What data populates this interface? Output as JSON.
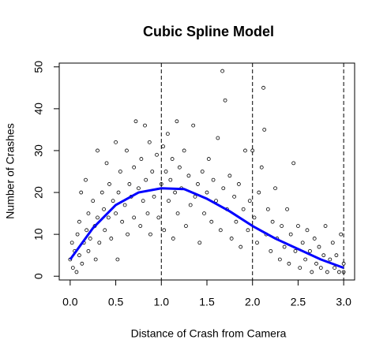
{
  "chart_data": {
    "type": "scatter",
    "title": "Cubic Spline Model",
    "x_label": "Distance of Crash from Camera",
    "y_label": "Number of Crashes",
    "xlim": [
      -0.12,
      3.12
    ],
    "ylim": [
      -0.9,
      50.9
    ],
    "xticks": [
      {
        "value": 0,
        "label": "0.0"
      },
      0.5,
      {
        "value": 1,
        "label": "1.0"
      },
      1.5,
      {
        "value": 2,
        "label": "2.0"
      },
      2.5,
      {
        "value": 3,
        "label": "3.0"
      }
    ],
    "yticks": [
      0,
      10,
      20,
      30,
      40,
      50
    ],
    "color": "#000000",
    "x": [
      0,
      0.02,
      0.03,
      0.05,
      0.07,
      0.08,
      0.1,
      0.1,
      0.12,
      0.13,
      0.15,
      0.17,
      0.18,
      0.2,
      0.2,
      0.22,
      0.25,
      0.27,
      0.28,
      0.3,
      0.3,
      0.32,
      0.35,
      0.37,
      0.38,
      0.4,
      0.42,
      0.43,
      0.45,
      0.47,
      0.5,
      0.5,
      0.52,
      0.53,
      0.55,
      0.57,
      0.6,
      0.62,
      0.63,
      0.65,
      0.67,
      0.7,
      0.7,
      0.72,
      0.75,
      0.77,
      0.78,
      0.8,
      0.82,
      0.83,
      0.85,
      0.87,
      0.88,
      0.9,
      0.92,
      0.95,
      0.97,
      1,
      1.02,
      1.03,
      1.05,
      1.07,
      1.08,
      1.1,
      1.12,
      1.13,
      1.15,
      1.17,
      1.18,
      1.2,
      1.22,
      1.25,
      1.27,
      1.3,
      1.32,
      1.35,
      1.37,
      1.4,
      1.42,
      1.45,
      1.47,
      1.5,
      1.52,
      1.55,
      1.57,
      1.6,
      1.62,
      1.65,
      1.67,
      1.68,
      1.7,
      1.72,
      1.75,
      1.77,
      1.8,
      1.82,
      1.85,
      1.87,
      1.9,
      1.92,
      1.95,
      1.97,
      2,
      2.02,
      2.05,
      2.07,
      2.1,
      2.12,
      2.13,
      2.15,
      2.17,
      2.2,
      2.22,
      2.25,
      2.27,
      2.3,
      2.32,
      2.35,
      2.38,
      2.4,
      2.42,
      2.45,
      2.47,
      2.5,
      2.52,
      2.55,
      2.58,
      2.6,
      2.63,
      2.65,
      2.68,
      2.7,
      2.73,
      2.75,
      2.78,
      2.8,
      2.82,
      2.85,
      2.88,
      2.9,
      2.92,
      2.95,
      2.97,
      3,
      3
    ],
    "values": [
      4,
      8,
      2,
      6,
      1,
      10,
      5,
      13,
      20,
      3,
      8,
      23,
      11,
      6,
      15,
      9,
      18,
      12,
      4,
      30,
      14,
      8,
      20,
      16,
      11,
      27,
      14,
      22,
      9,
      18,
      32,
      15,
      4,
      20,
      25,
      13,
      17,
      30,
      10,
      22,
      19,
      26,
      14,
      37,
      21,
      12,
      28,
      18,
      36,
      23,
      15,
      32,
      10,
      25,
      19,
      29,
      14,
      22,
      31,
      11,
      25,
      34,
      18,
      23,
      28,
      9,
      20,
      37,
      15,
      26,
      21,
      30,
      12,
      24,
      17,
      36,
      19,
      22,
      8,
      25,
      15,
      20,
      28,
      13,
      23,
      18,
      33,
      11,
      49,
      21,
      42,
      16,
      24,
      9,
      19,
      13,
      22,
      7,
      16,
      30,
      11,
      18,
      30,
      14,
      8,
      20,
      26,
      45,
      35,
      10,
      16,
      6,
      13,
      21,
      9,
      4,
      12,
      7,
      16,
      3,
      10,
      27,
      6,
      12,
      2,
      8,
      4,
      11,
      6,
      1,
      9,
      3,
      7,
      2,
      5,
      12,
      1,
      4,
      8,
      2,
      5,
      1,
      10,
      3,
      1
    ],
    "fit": {
      "color": "#0000ff",
      "x": [
        0,
        0.25,
        0.5,
        0.75,
        1,
        1.25,
        1.5,
        1.75,
        2,
        2.25,
        2.5,
        2.75,
        3
      ],
      "values": [
        4,
        11.5,
        17,
        20,
        21,
        20.8,
        18.5,
        15.5,
        12,
        9,
        6.5,
        4,
        2
      ]
    },
    "knots": [
      1,
      2,
      3
    ]
  }
}
